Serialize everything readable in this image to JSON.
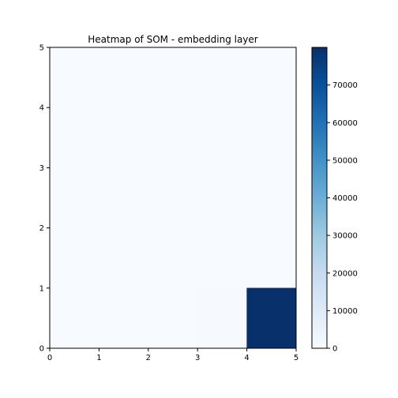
{
  "chart_data": {
    "type": "heatmap",
    "title": "Heatmap of SOM - embedding layer",
    "xlabel": "",
    "ylabel": "",
    "xlim": [
      0,
      5
    ],
    "ylim": [
      0,
      5
    ],
    "x_ticks": [
      "0",
      "1",
      "2",
      "3",
      "4",
      "5"
    ],
    "y_ticks": [
      "0",
      "1",
      "2",
      "3",
      "4",
      "5"
    ],
    "colormap": "Blues",
    "vmin": 0,
    "vmax": 80000,
    "colorbar_ticks": [
      "0",
      "10000",
      "20000",
      "30000",
      "40000",
      "50000",
      "60000",
      "70000"
    ],
    "colorbar_tick_values": [
      0,
      10000,
      20000,
      30000,
      40000,
      50000,
      60000,
      70000
    ],
    "grid": false,
    "rows_top_to_bottom": [
      [
        0,
        0,
        0,
        0,
        0
      ],
      [
        0,
        0,
        0,
        0,
        0
      ],
      [
        0,
        0,
        0,
        0,
        0
      ],
      [
        0,
        0,
        0,
        0,
        0
      ],
      [
        0,
        0,
        0,
        400,
        80000
      ]
    ]
  }
}
